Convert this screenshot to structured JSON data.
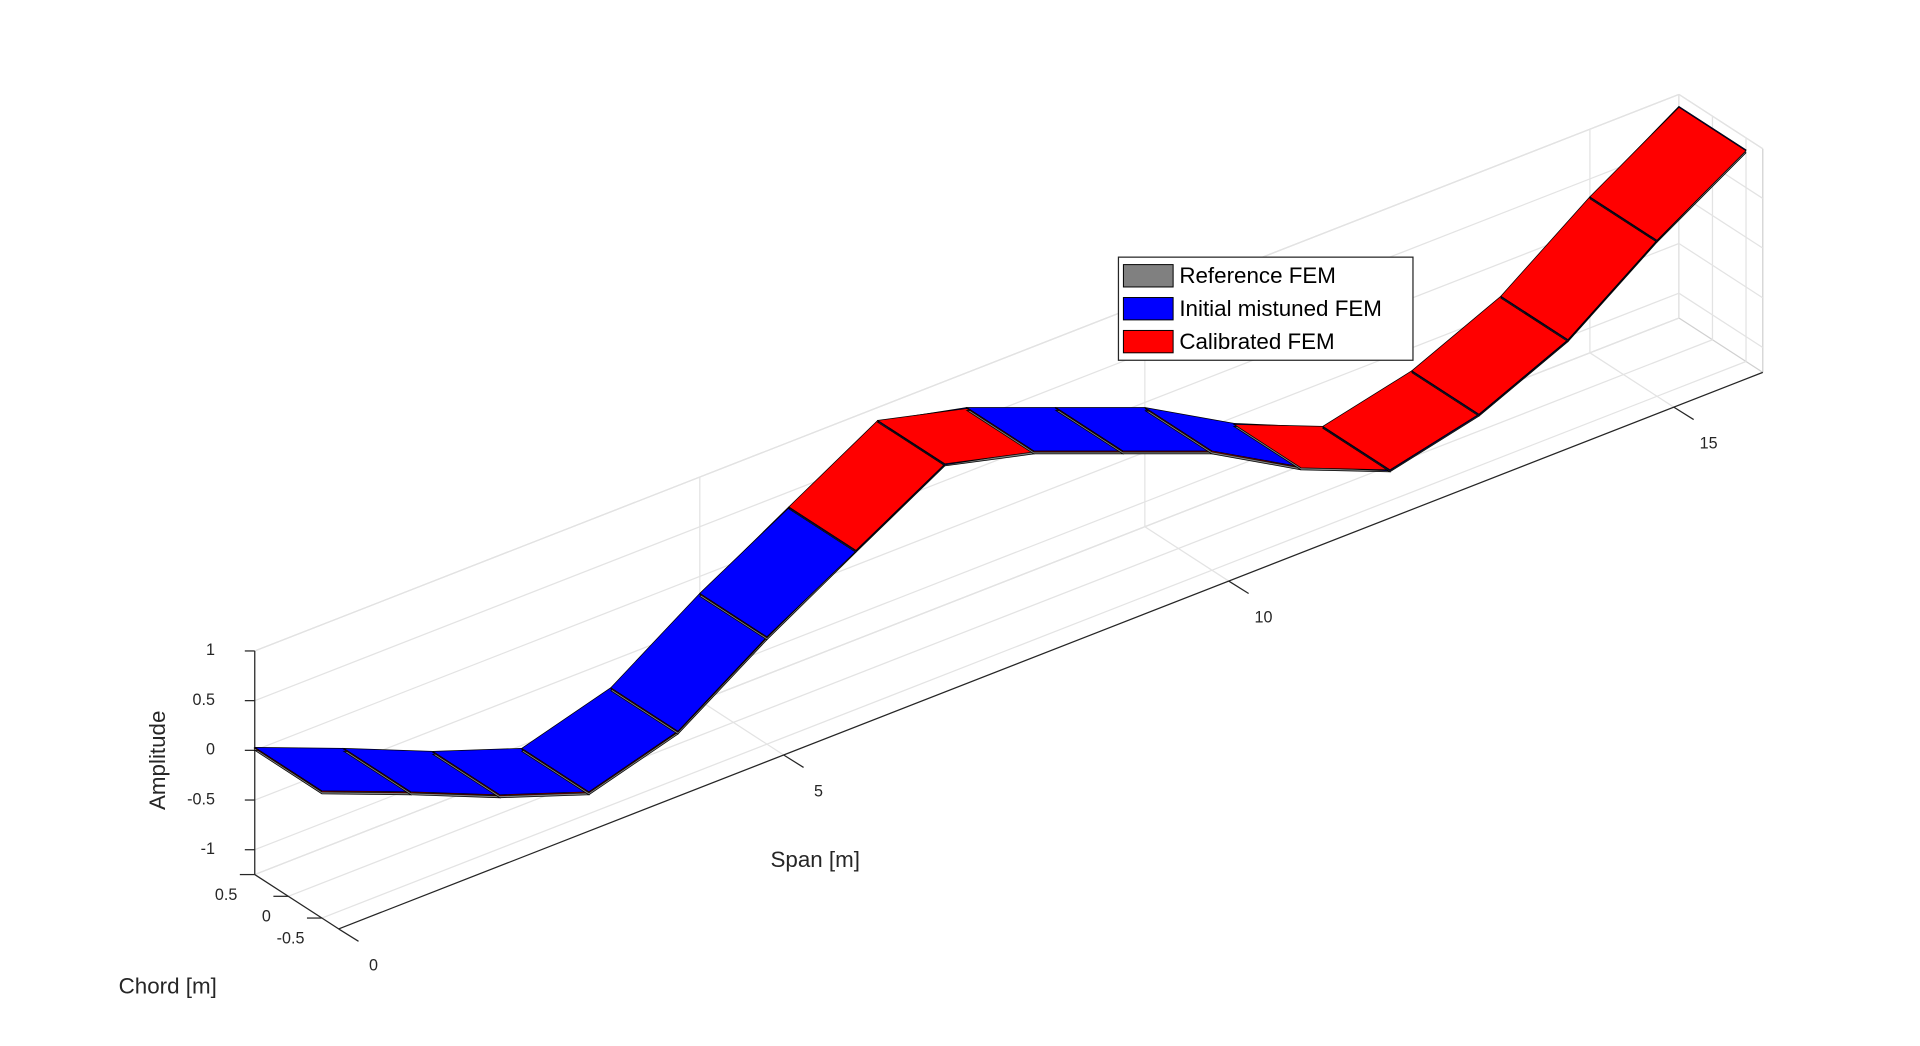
{
  "chart_data": {
    "type": "surface",
    "xlabel": "Span [m]",
    "ylabel": "Chord [m]",
    "zlabel": "Amplitude",
    "x": [
      0,
      1,
      2,
      3,
      4,
      5,
      6,
      7,
      8,
      9,
      10,
      11,
      12,
      13,
      14,
      15,
      16
    ],
    "chord": [
      0.5,
      -0.5
    ],
    "series": [
      {
        "name": "Reference FEM",
        "color": "#808080",
        "values": [
          0,
          -0.36,
          -0.74,
          -1.06,
          -0.8,
          -0.2,
          0.33,
          0.85,
          0.62,
          0.27,
          -0.08,
          -0.59,
          -0.96,
          -0.75,
          -0.35,
          0.3,
          0.85
        ]
      },
      {
        "name": "Initial mistuned FEM",
        "color": "#0000ff",
        "values": [
          0.03,
          -0.33,
          -0.71,
          -1.03,
          -0.77,
          -0.17,
          0.34,
          0.86,
          0.65,
          0.3,
          -0.05,
          -0.56,
          -0.95,
          -0.74,
          -0.34,
          0.31,
          0.88
        ]
      },
      {
        "name": "Calibrated FEM",
        "color": "#ff0000",
        "values": [
          0.02,
          -0.34,
          -0.72,
          -1.04,
          -0.78,
          -0.18,
          0.35,
          0.87,
          0.64,
          0.29,
          -0.06,
          -0.57,
          -0.94,
          -0.73,
          -0.33,
          0.32,
          0.87
        ]
      }
    ],
    "xlim": [
      0,
      16
    ],
    "xticks": [
      0,
      5,
      10,
      15
    ],
    "ylim": [
      -0.75,
      0.5
    ],
    "yticks": [
      -0.5,
      0,
      0.5
    ],
    "zlim": [
      -1.25,
      1
    ],
    "zticks": [
      -1,
      -0.5,
      0,
      0.5,
      1
    ],
    "grid": true,
    "mesh_edge_color": "#000000"
  }
}
